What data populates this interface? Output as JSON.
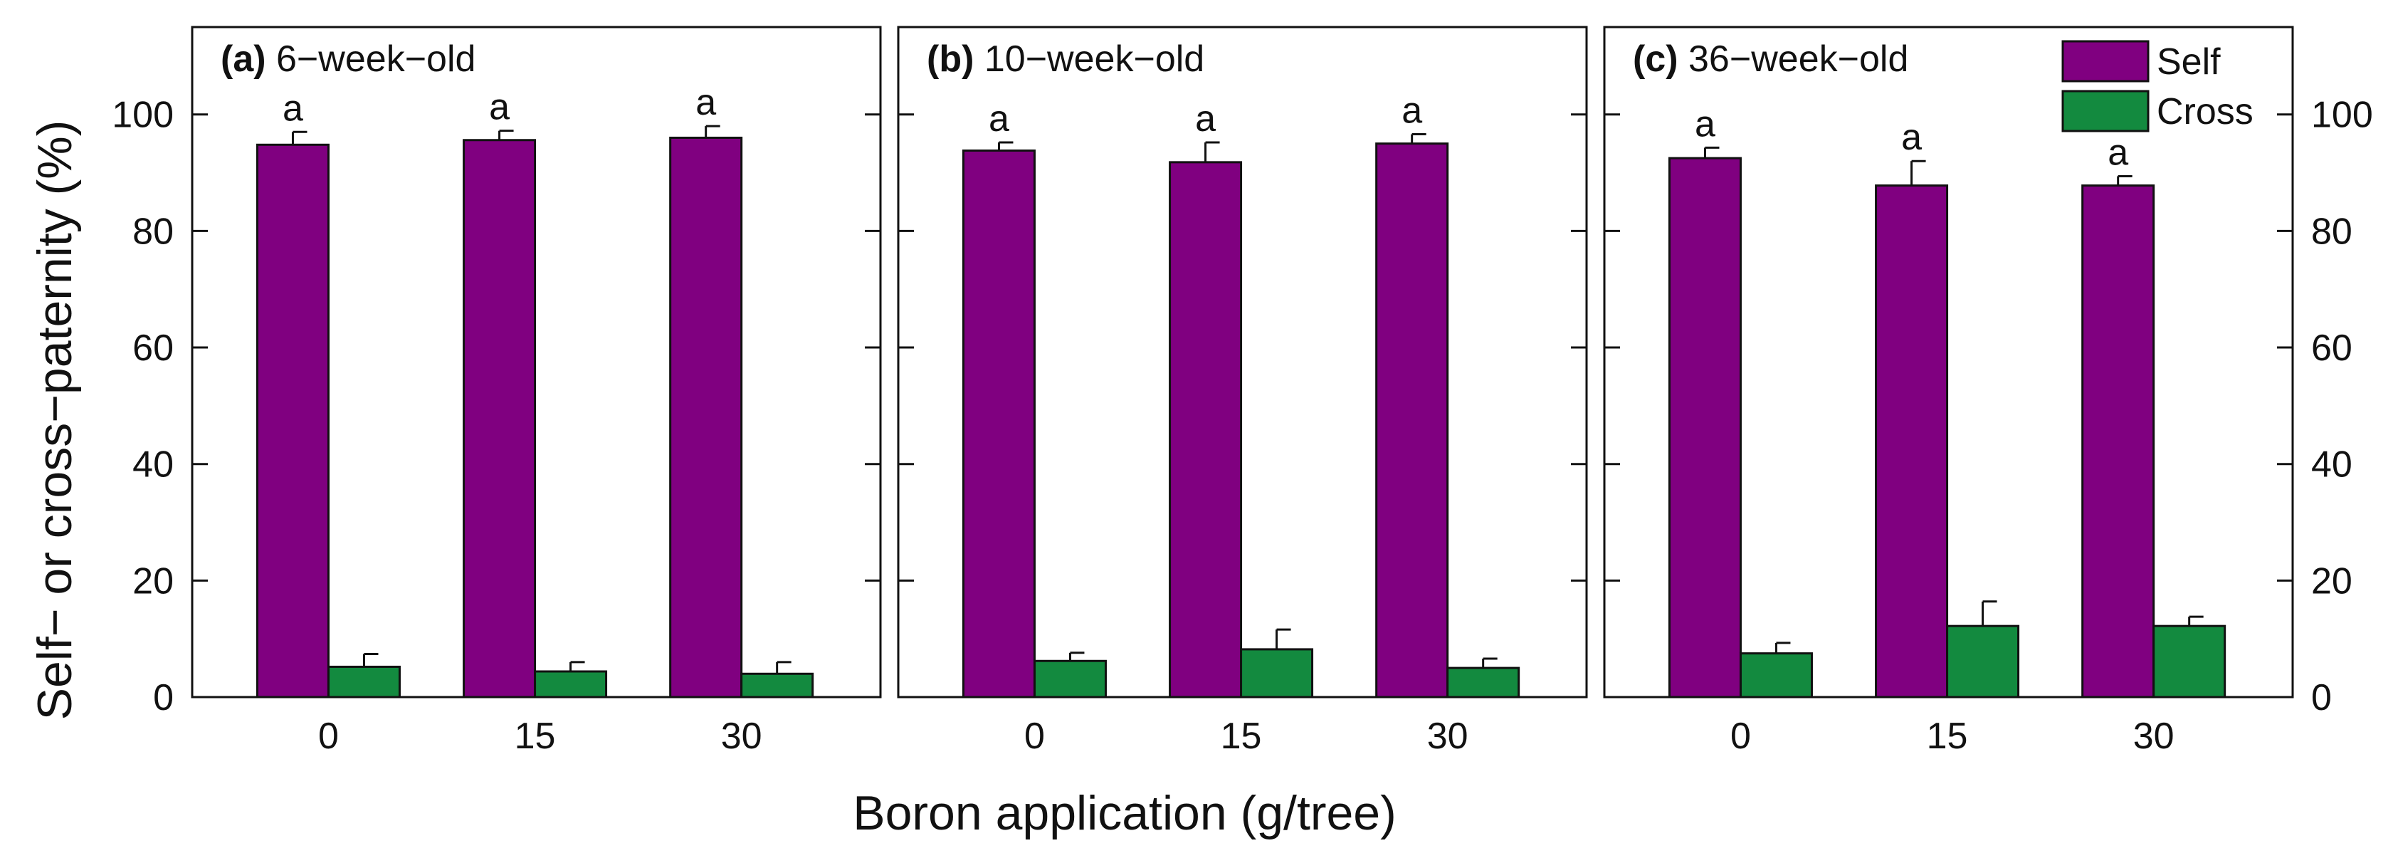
{
  "chart_data": {
    "type": "bar",
    "ylabel": "Self− or cross−paternity (%)",
    "xlabel": "Boron application (g/tree)",
    "ylim": [
      0,
      115
    ],
    "yticks": [
      "0",
      "20",
      "40",
      "60",
      "80",
      "100"
    ],
    "yticks_values": [
      0,
      20,
      40,
      60,
      80,
      100
    ],
    "categories": [
      "0",
      "15",
      "30"
    ],
    "legend": {
      "position": "top-right",
      "entries": [
        "Self",
        "Cross"
      ]
    },
    "colors": {
      "self": "#800080",
      "cross": "#138a3f"
    },
    "panels": [
      {
        "tag": "(a)",
        "title": "6−week−old",
        "series": [
          {
            "name": "Self",
            "values": [
              94.8,
              95.6,
              96.0
            ],
            "errors": [
              2.2,
              1.6,
              2.0
            ],
            "letters": [
              "a",
              "a",
              "a"
            ]
          },
          {
            "name": "Cross",
            "values": [
              5.2,
              4.4,
              4.0
            ],
            "errors": [
              2.2,
              1.6,
              2.0
            ]
          }
        ]
      },
      {
        "tag": "(b)",
        "title": "10−week−old",
        "series": [
          {
            "name": "Self",
            "values": [
              93.8,
              91.8,
              95.0
            ],
            "errors": [
              1.4,
              3.4,
              1.6
            ],
            "letters": [
              "a",
              "a",
              "a"
            ]
          },
          {
            "name": "Cross",
            "values": [
              6.2,
              8.2,
              5.0
            ],
            "errors": [
              1.4,
              3.4,
              1.6
            ]
          }
        ]
      },
      {
        "tag": "(c)",
        "title": "36−week−old",
        "series": [
          {
            "name": "Self",
            "values": [
              92.5,
              87.8,
              87.8
            ],
            "errors": [
              1.8,
              4.2,
              1.6
            ],
            "letters": [
              "a",
              "a",
              "a"
            ]
          },
          {
            "name": "Cross",
            "values": [
              7.5,
              12.2,
              12.2
            ],
            "errors": [
              1.8,
              4.2,
              1.6
            ]
          }
        ]
      }
    ]
  }
}
